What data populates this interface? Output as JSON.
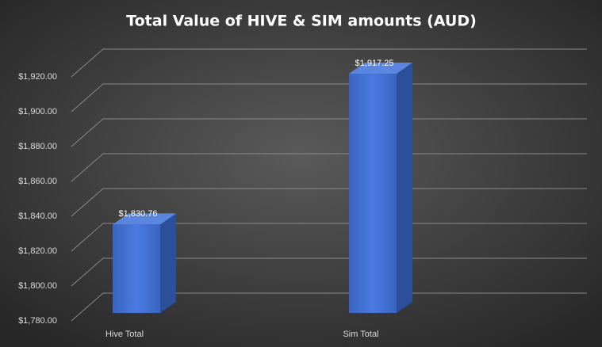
{
  "chart_data": {
    "type": "bar3d",
    "title": "Total Value of HIVE & SIM amounts (AUD)",
    "categories": [
      "Hive Total",
      "Sim Total"
    ],
    "values": [
      1830.76,
      1917.25
    ],
    "value_labels": [
      "$1,830.76",
      "$1,917.25"
    ],
    "color": "#4472c4",
    "ylim": [
      1780,
      1920
    ],
    "yticks": [
      {
        "value": 1780,
        "label": "$1,780.00"
      },
      {
        "value": 1800,
        "label": "$1,800.00"
      },
      {
        "value": 1820,
        "label": "$1,820.00"
      },
      {
        "value": 1840,
        "label": "$1,840.00"
      },
      {
        "value": 1860,
        "label": "$1,860.00"
      },
      {
        "value": 1880,
        "label": "$1,880.00"
      },
      {
        "value": 1900,
        "label": "$1,900.00"
      },
      {
        "value": 1920,
        "label": "$1,920.00"
      }
    ],
    "grid": true
  }
}
